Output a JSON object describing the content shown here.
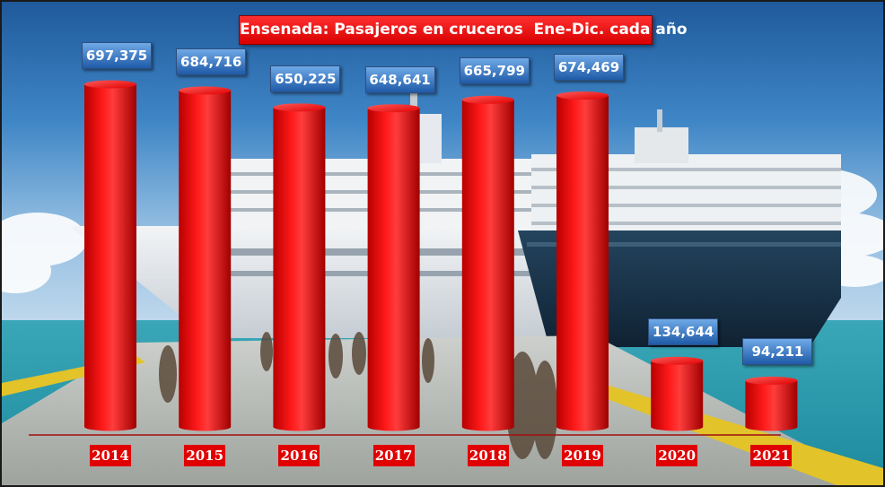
{
  "chart_data": {
    "type": "bar",
    "title": "Ensenada: Pasajeros en cruceros  Ene-Dic. cada año",
    "categories": [
      "2014",
      "2015",
      "2016",
      "2017",
      "2018",
      "2019",
      "2020",
      "2021"
    ],
    "values": [
      697375,
      684716,
      650225,
      648641,
      665799,
      674469,
      134644,
      94211
    ],
    "value_labels": [
      "697,375",
      "684,716",
      "650,225",
      "648,641",
      "665,799",
      "674,469",
      "134,644",
      "94,211"
    ],
    "bar_color": "#ff0000",
    "label_color": "#2f6fc4",
    "background": "photo of two cruise ships docked at a pier"
  }
}
